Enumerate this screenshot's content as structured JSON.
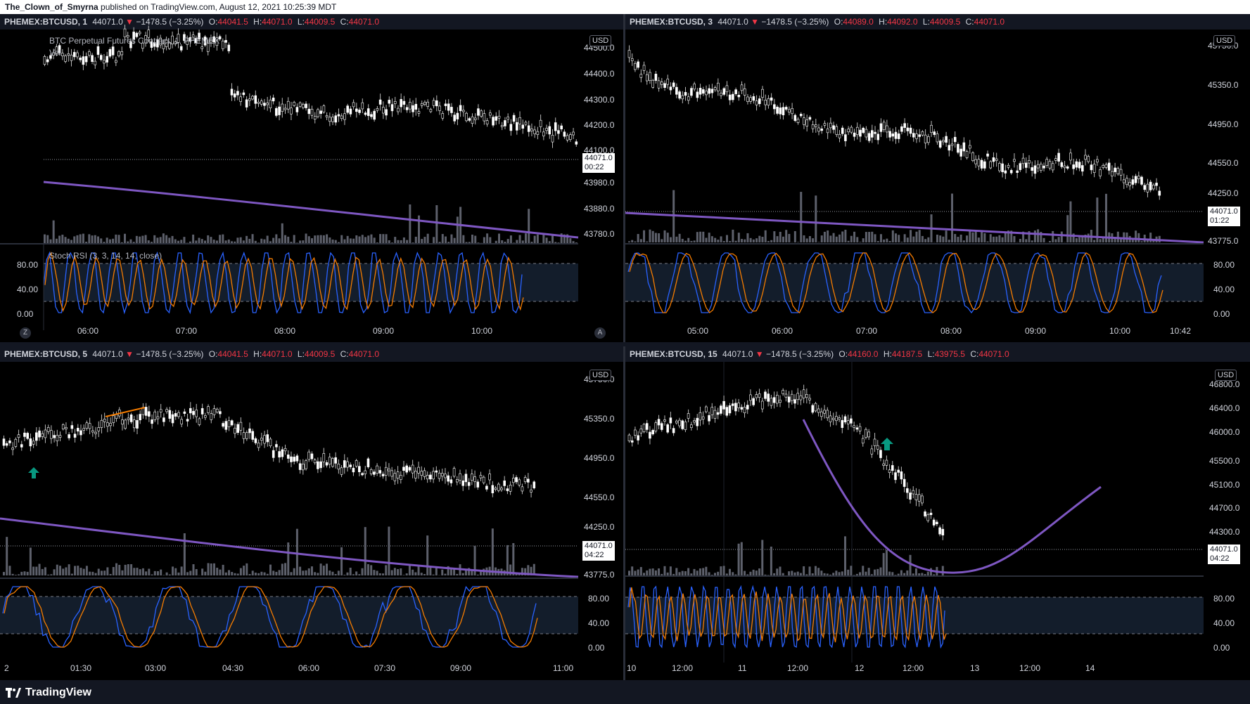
{
  "page": {
    "author": "The_Clown_of_Smyrna",
    "published_text": " published on TradingView.com, August 12, 2021 10:25:39 MDT",
    "brand": "TradingView"
  },
  "colors": {
    "down": "#f23645",
    "stoch_k": "#2962ff",
    "stoch_d": "#f57c00",
    "ma": "#7e57c2",
    "arrow": "#089981"
  },
  "panels": [
    {
      "id": "p1",
      "symbol": "PHEMEX:BTCUSD, 1",
      "price": "44071.0",
      "change": "−1478.5 (−3.25%)",
      "open": "44041.5",
      "high": "44071.0",
      "low": "44009.5",
      "close": "44071.0",
      "legend_title": "BTC Perpetual Futures Contract, 1, PHEMEX",
      "legend_vol": "Vol",
      "rsi_label": "Stoch RSI (3, 3, 14, 14, close)",
      "currency": "USD",
      "price_tag": "44071.0",
      "countdown": "00:22",
      "y_ticks": [
        "44500.0",
        "44400.0",
        "44300.0",
        "44200.0",
        "44100.0",
        "43980.0",
        "43880.0",
        "43780.0"
      ],
      "rsi_ticks": [
        "80.00",
        "40.00",
        "0.00"
      ],
      "x_ticks": [
        "06:00",
        "07:00",
        "08:00",
        "09:00",
        "10:00"
      ],
      "left_button": "Z",
      "right_button": "A"
    },
    {
      "id": "p2",
      "symbol": "PHEMEX:BTCUSD, 3",
      "price": "44071.0",
      "change": "−1478.5 (−3.25%)",
      "open": "44089.0",
      "high": "44092.0",
      "low": "44009.5",
      "close": "44071.0",
      "currency": "USD",
      "price_tag": "44071.0",
      "countdown": "01:22",
      "y_ticks": [
        "45750.0",
        "45350.0",
        "44950.0",
        "44550.0",
        "44250.0",
        "43775.0"
      ],
      "rsi_ticks": [
        "80.00",
        "40.00",
        "0.00"
      ],
      "x_ticks": [
        "05:00",
        "06:00",
        "07:00",
        "08:00",
        "09:00",
        "10:00",
        "10:42"
      ]
    },
    {
      "id": "p3",
      "symbol": "PHEMEX:BTCUSD, 5",
      "price": "44071.0",
      "change": "−1478.5 (−3.25%)",
      "open": "44041.5",
      "high": "44071.0",
      "low": "44009.5",
      "close": "44071.0",
      "currency": "USD",
      "price_tag": "44071.0",
      "countdown": "04:22",
      "y_ticks": [
        "45750.0",
        "45350.0",
        "44950.0",
        "44550.0",
        "44250.0",
        "43775.0"
      ],
      "rsi_ticks": [
        "80.00",
        "40.00",
        "0.00"
      ],
      "x_ticks": [
        "2",
        "01:30",
        "03:00",
        "04:30",
        "06:00",
        "07:30",
        "09:00",
        "11:00"
      ]
    },
    {
      "id": "p4",
      "symbol": "PHEMEX:BTCUSD, 15",
      "price": "44071.0",
      "change": "−1478.5 (−3.25%)",
      "open": "44160.0",
      "high": "44187.5",
      "low": "43975.5",
      "close": "44071.0",
      "currency": "USD",
      "price_tag": "44071.0",
      "countdown": "04:22",
      "y_ticks": [
        "46800.0",
        "46400.0",
        "46000.0",
        "45500.0",
        "45100.0",
        "44700.0",
        "44300.0"
      ],
      "rsi_ticks": [
        "80.00",
        "40.00",
        "0.00"
      ],
      "x_ticks": [
        "10",
        "12:00",
        "11",
        "12:00",
        "12",
        "12:00",
        "13",
        "12:00",
        "14"
      ]
    }
  ]
}
